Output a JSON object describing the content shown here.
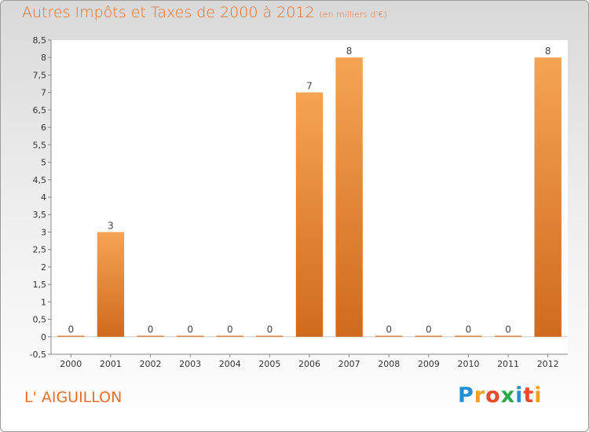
{
  "title": "Autres Impôts et Taxes de 2000 à 2012",
  "unit_note": "(en milliers d'€)",
  "place": "L' AIGUILLON",
  "logo": {
    "letters": [
      "P",
      "r",
      "o",
      "x",
      "i",
      "t",
      "i"
    ],
    "colors": [
      "#1f8fd6",
      "#f0a020",
      "#e84a2a",
      "#2aa84a",
      "#1f8fd6",
      "#e84a2a",
      "#f0a020"
    ]
  },
  "colors": {
    "bar_light": "#f5a454",
    "bar_dark": "#d06a1e",
    "title": "#e8702a"
  },
  "chart_data": {
    "type": "bar",
    "title": "Autres Impôts et Taxes de 2000 à 2012",
    "xlabel": "",
    "ylabel": "",
    "categories": [
      "2000",
      "2001",
      "2002",
      "2003",
      "2004",
      "2005",
      "2006",
      "2007",
      "2008",
      "2009",
      "2010",
      "2011",
      "2012"
    ],
    "values": [
      0,
      3,
      0,
      0,
      0,
      0,
      7,
      8,
      0,
      0,
      0,
      0,
      8
    ],
    "labels": [
      "0",
      "3",
      "0",
      "0",
      "0",
      "0",
      "7",
      "8",
      "0",
      "0",
      "0",
      "0",
      "8"
    ],
    "ylim": [
      -0.5,
      8.5
    ],
    "yticks": [
      "-0,5",
      "0",
      "0,5",
      "1",
      "1,5",
      "2",
      "2,5",
      "3",
      "3,5",
      "4",
      "4,5",
      "5",
      "5,5",
      "6",
      "6,5",
      "7",
      "7,5",
      "8",
      "8,5"
    ],
    "grid": false,
    "legend": "none"
  }
}
